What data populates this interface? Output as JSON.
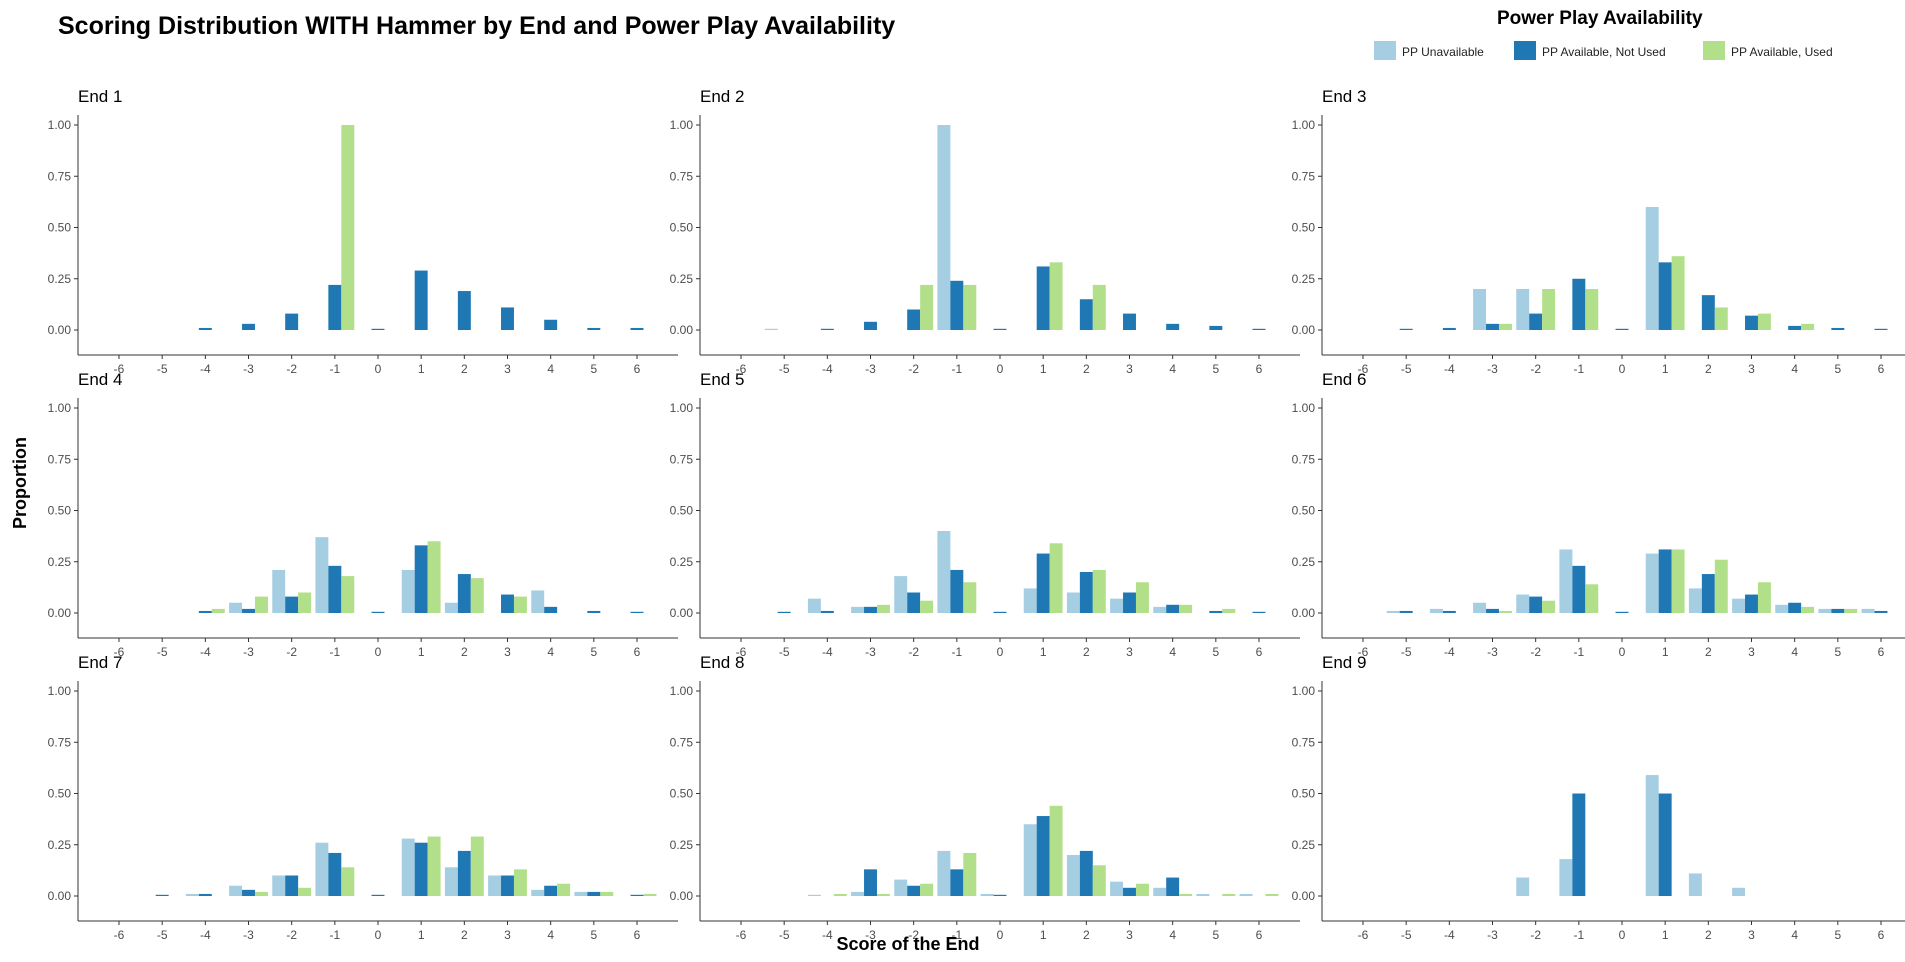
{
  "title": "Scoring Distribution WITH Hammer by End and Power Play Availability",
  "legend": {
    "title": "Power Play  Availability",
    "items": [
      {
        "label": "PP Unavailable",
        "color": "#a6cee3"
      },
      {
        "label": "PP Available, Not Used",
        "color": "#1f78b4"
      },
      {
        "label": "PP Available, Used",
        "color": "#b2df8a"
      }
    ]
  },
  "chart_data": {
    "type": "bar",
    "xlabel": "Score of the End",
    "ylabel": "Proportion",
    "ylim": [
      0,
      1
    ],
    "yticks": [
      "0.00",
      "0.25",
      "0.50",
      "0.75",
      "1.00"
    ],
    "categories": [
      "-6",
      "-5",
      "-4",
      "-3",
      "-2",
      "-1",
      "0",
      "1",
      "2",
      "3",
      "4",
      "5",
      "6"
    ],
    "series_names": [
      "PP Unavailable",
      "PP Available, Not Used",
      "PP Available, Used"
    ],
    "panels": [
      {
        "title": "End 1",
        "series": [
          [
            null,
            null,
            null,
            null,
            null,
            null,
            null,
            null,
            null,
            null,
            null,
            null,
            null
          ],
          [
            null,
            null,
            0.01,
            0.03,
            0.08,
            0.22,
            0.0,
            0.29,
            0.19,
            0.11,
            0.05,
            0.01,
            0.01
          ],
          [
            null,
            null,
            null,
            null,
            null,
            1.0,
            null,
            null,
            null,
            null,
            null,
            null,
            null
          ]
        ]
      },
      {
        "title": "End 2",
        "series": [
          [
            null,
            0.0,
            null,
            null,
            null,
            1.0,
            null,
            null,
            null,
            null,
            null,
            null,
            null
          ],
          [
            null,
            null,
            0.0,
            0.04,
            0.1,
            0.24,
            0.0,
            0.31,
            0.15,
            0.08,
            0.03,
            0.02,
            0.0
          ],
          [
            null,
            null,
            null,
            null,
            0.22,
            0.22,
            null,
            0.33,
            0.22,
            null,
            null,
            null,
            null
          ]
        ]
      },
      {
        "title": "End 3",
        "series": [
          [
            null,
            null,
            null,
            0.2,
            0.2,
            null,
            null,
            0.6,
            null,
            null,
            null,
            null,
            null
          ],
          [
            null,
            0.0,
            0.01,
            0.03,
            0.08,
            0.25,
            0.0,
            0.33,
            0.17,
            0.07,
            0.02,
            0.01,
            0.0
          ],
          [
            null,
            null,
            null,
            0.03,
            0.2,
            0.2,
            null,
            0.36,
            0.11,
            0.08,
            0.03,
            null,
            null
          ]
        ]
      },
      {
        "title": "End 4",
        "series": [
          [
            null,
            null,
            null,
            0.05,
            0.21,
            0.37,
            null,
            0.21,
            0.05,
            null,
            0.11,
            null,
            null
          ],
          [
            null,
            null,
            0.01,
            0.02,
            0.08,
            0.23,
            0.0,
            0.33,
            0.19,
            0.09,
            0.03,
            0.01,
            0.0
          ],
          [
            null,
            null,
            0.02,
            0.08,
            0.1,
            0.18,
            null,
            0.35,
            0.17,
            0.08,
            null,
            null,
            null
          ]
        ]
      },
      {
        "title": "End 5",
        "series": [
          [
            null,
            null,
            0.07,
            0.03,
            0.18,
            0.4,
            null,
            0.12,
            0.1,
            0.07,
            0.03,
            null,
            null
          ],
          [
            null,
            0.0,
            0.01,
            0.03,
            0.1,
            0.21,
            0.0,
            0.29,
            0.2,
            0.1,
            0.04,
            0.01,
            0.0
          ],
          [
            null,
            null,
            null,
            0.04,
            0.06,
            0.15,
            null,
            0.34,
            0.21,
            0.15,
            0.04,
            0.02,
            null
          ]
        ]
      },
      {
        "title": "End 6",
        "series": [
          [
            null,
            0.01,
            0.02,
            0.05,
            0.09,
            0.31,
            null,
            0.29,
            0.12,
            0.07,
            0.04,
            0.02,
            0.02
          ],
          [
            null,
            0.01,
            0.01,
            0.02,
            0.08,
            0.23,
            0.0,
            0.31,
            0.19,
            0.09,
            0.05,
            0.02,
            0.01
          ],
          [
            null,
            null,
            null,
            0.01,
            0.06,
            0.14,
            null,
            0.31,
            0.26,
            0.15,
            0.03,
            0.02,
            null
          ]
        ]
      },
      {
        "title": "End 7",
        "series": [
          [
            null,
            null,
            0.01,
            0.05,
            0.1,
            0.26,
            null,
            0.28,
            0.14,
            0.1,
            0.03,
            0.02,
            null
          ],
          [
            null,
            0.0,
            0.01,
            0.03,
            0.1,
            0.21,
            0.0,
            0.26,
            0.22,
            0.1,
            0.05,
            0.02,
            0.0
          ],
          [
            null,
            null,
            null,
            0.02,
            0.04,
            0.14,
            null,
            0.29,
            0.29,
            0.13,
            0.06,
            0.02,
            0.01
          ]
        ]
      },
      {
        "title": "End 8",
        "series": [
          [
            null,
            null,
            0.0,
            0.02,
            0.08,
            0.22,
            0.01,
            0.35,
            0.2,
            0.07,
            0.04,
            0.01,
            0.01
          ],
          [
            null,
            null,
            null,
            0.13,
            0.05,
            0.13,
            0.0,
            0.39,
            0.22,
            0.04,
            0.09,
            null,
            null
          ],
          [
            null,
            null,
            0.01,
            0.01,
            0.06,
            0.21,
            null,
            0.44,
            0.15,
            0.06,
            0.01,
            0.01,
            0.01
          ]
        ]
      },
      {
        "title": "End 9",
        "series": [
          [
            null,
            null,
            null,
            null,
            0.09,
            0.18,
            null,
            0.59,
            0.11,
            0.04,
            null,
            null,
            null
          ],
          [
            null,
            null,
            null,
            null,
            null,
            0.5,
            null,
            0.5,
            null,
            null,
            null,
            null,
            null
          ],
          [
            null,
            null,
            null,
            null,
            null,
            null,
            null,
            null,
            null,
            null,
            null,
            null,
            null
          ]
        ]
      }
    ]
  }
}
